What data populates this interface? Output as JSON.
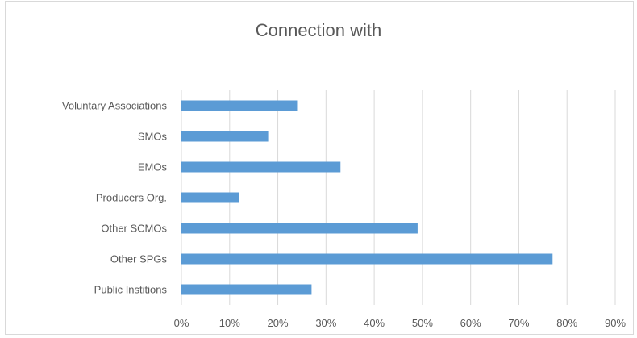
{
  "chart_data": {
    "type": "bar",
    "orientation": "horizontal",
    "title": "Connection with",
    "categories": [
      "Voluntary Associations",
      "SMOs",
      "EMOs",
      "Producers Org.",
      "Other SCMOs",
      "Other SPGs",
      "Public Institions"
    ],
    "values": [
      24,
      18,
      33,
      12,
      49,
      77,
      27
    ],
    "xlim": [
      0,
      90
    ],
    "x_ticks": [
      "0%",
      "10%",
      "20%",
      "30%",
      "40%",
      "50%",
      "60%",
      "70%",
      "80%",
      "90%"
    ],
    "xlabel": "",
    "ylabel": "",
    "grid": true,
    "legend": "none",
    "bar_color": "#5b9bd5",
    "grid_color": "#d9d9d9"
  }
}
